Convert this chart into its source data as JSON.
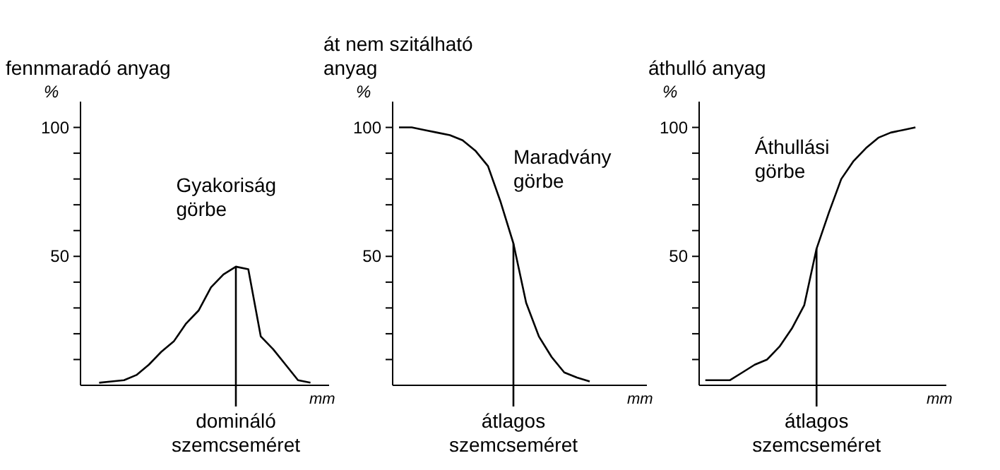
{
  "chart_data": [
    {
      "type": "line",
      "title": "fennmaradó anyag",
      "ylabel": "%",
      "xlabel": "mm",
      "annotations": [
        "Gyakoriság görbe",
        "domináló szemcseméret"
      ],
      "categories": [
        null,
        null,
        null,
        null,
        null,
        null,
        null,
        null,
        null,
        null,
        null,
        null,
        null,
        null,
        null,
        null,
        null,
        null,
        null,
        null
      ],
      "ylim": [
        0,
        110
      ],
      "yticks": [
        {
          "value": 10,
          "label": null
        },
        {
          "value": 20,
          "label": null
        },
        {
          "value": 30,
          "label": null
        },
        {
          "value": 40,
          "label": null
        },
        {
          "value": 50,
          "label": "50"
        },
        {
          "value": 60,
          "label": null
        },
        {
          "value": 70,
          "label": null
        },
        {
          "value": 80,
          "label": null
        },
        {
          "value": 90,
          "label": null
        },
        {
          "value": 100,
          "label": "100"
        }
      ],
      "tick_labels": "y",
      "series": [
        {
          "color": "#000000",
          "values": [
            null,
            1,
            1.5,
            2,
            4,
            8,
            13,
            17,
            24,
            29,
            38,
            43,
            46,
            45,
            19,
            14,
            8,
            2,
            1,
            null
          ]
        }
      ]
    },
    {
      "type": "line",
      "title": "át nem szitálható anyag",
      "ylabel": "%",
      "xlabel": "mm",
      "annotations": [
        "Maradvány görbe",
        "átlagos szemcseméret"
      ],
      "categories": [
        null,
        null,
        null,
        null,
        null,
        null,
        null,
        null,
        null,
        null,
        null,
        null,
        null,
        null,
        null,
        null,
        null,
        null,
        null,
        null
      ],
      "ylim": [
        0,
        110
      ],
      "yticks": [
        {
          "value": 10,
          "label": null
        },
        {
          "value": 20,
          "label": null
        },
        {
          "value": 30,
          "label": null
        },
        {
          "value": 40,
          "label": null
        },
        {
          "value": 50,
          "label": "50"
        },
        {
          "value": 60,
          "label": null
        },
        {
          "value": 70,
          "label": null
        },
        {
          "value": 80,
          "label": null
        },
        {
          "value": 90,
          "label": null
        },
        {
          "value": 100,
          "label": "100"
        }
      ],
      "tick_labels": "y",
      "series": [
        {
          "color": "#000000",
          "values": [
            100,
            100,
            99,
            98,
            97,
            95,
            91,
            85,
            71,
            55,
            32,
            19,
            11,
            5,
            3,
            1.5,
            null,
            null,
            null,
            null
          ]
        }
      ]
    },
    {
      "type": "line",
      "title": "áthulló anyag",
      "ylabel": "%",
      "xlabel": "mm",
      "annotations": [
        "Áthullási görbe",
        "átlagos szemcseméret"
      ],
      "categories": [
        null,
        null,
        null,
        null,
        null,
        null,
        null,
        null,
        null,
        null,
        null,
        null,
        null,
        null,
        null,
        null,
        null,
        null,
        null,
        null
      ],
      "ylim": [
        0,
        110
      ],
      "yticks": [
        {
          "value": 10,
          "label": null
        },
        {
          "value": 20,
          "label": null
        },
        {
          "value": 30,
          "label": null
        },
        {
          "value": 40,
          "label": null
        },
        {
          "value": 50,
          "label": "50"
        },
        {
          "value": 60,
          "label": null
        },
        {
          "value": 70,
          "label": null
        },
        {
          "value": 80,
          "label": null
        },
        {
          "value": 90,
          "label": null
        },
        {
          "value": 100,
          "label": "100"
        }
      ],
      "tick_labels": "y",
      "series": [
        {
          "color": "#000000",
          "values": [
            2,
            2,
            2,
            5,
            8,
            10,
            15,
            22,
            31,
            53,
            67,
            80,
            87,
            92,
            96,
            98,
            99,
            100,
            null,
            null
          ]
        }
      ]
    }
  ]
}
